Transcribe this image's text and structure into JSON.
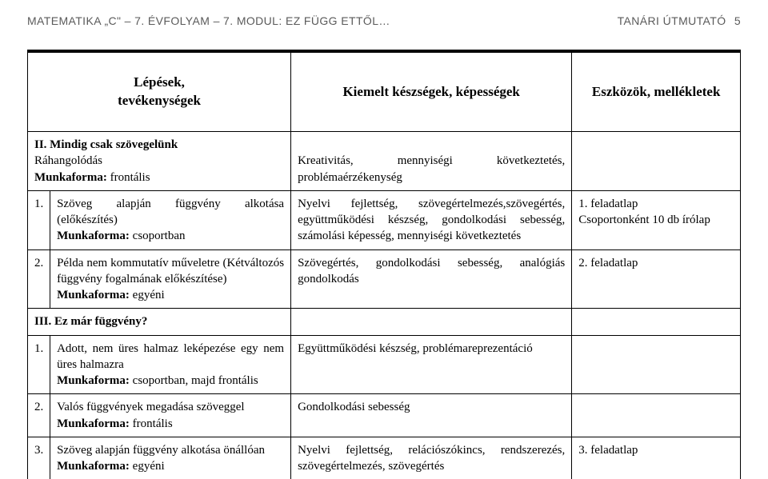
{
  "header": {
    "left": "MATEMATIKA „C\" – 7. ÉVFOLYAM – 7. MODUL: EZ FÜGG ETTŐL…",
    "right_label": "TANÁRI ÚTMUTATÓ",
    "right_num": "5"
  },
  "table": {
    "head": {
      "c1": "Lépések,\ntevékenységek",
      "c2": "Kiemelt készségek, képességek",
      "c3": "Eszközök, mellékletek"
    },
    "sectionII": {
      "title_bold": "II. Mindig csak szövegelünk",
      "row0": {
        "c1a": "Ráhangolódás",
        "c1b_bold": "Munkaforma:",
        "c1b": " frontális",
        "c2": "Kreativitás, mennyiségi következtetés, problémaérzékenység",
        "c3": ""
      },
      "row1": {
        "num": "1.",
        "c1a": "Szöveg alapján függvény alkotása (előkészítés)",
        "c1b_bold": "Munkaforma:",
        "c1b": " csoportban",
        "c2": "Nyelvi fejlettség, szövegértelmezés,szövegértés, együttműködési készség, gondolkodási sebesség, számolási képesség, mennyiségi következtetés",
        "c3": "1. feladatlap\nCsoportonként 10 db írólap"
      },
      "row2": {
        "num": "2.",
        "c1a": "Példa nem kommutatív műveletre (Kétváltozós függvény fogalmának előkészítése)",
        "c1b_bold": "Munkaforma:",
        "c1b": " egyéni",
        "c2": "Szövegértés, gondolkodási sebesség, analógiás gondolkodás",
        "c3": "2. feladatlap"
      }
    },
    "sectionIII": {
      "title_bold": "III. Ez már függvény?",
      "row1": {
        "num": "1.",
        "c1a": "Adott, nem üres halmaz leképezése egy nem üres halmazra",
        "c1b_bold": "Munkaforma:",
        "c1b": " csoportban, majd frontális",
        "c2": "Együttműködési készség, problémareprezentáció",
        "c3": ""
      },
      "row2": {
        "num": "2.",
        "c1a": "Valós függvények megadása szöveggel",
        "c1b_bold": "Munkaforma:",
        "c1b": " frontális",
        "c2": "Gondolkodási sebesség",
        "c3": ""
      },
      "row3": {
        "num": "3.",
        "c1a": "Szöveg alapján függvény alkotása önállóan",
        "c1b_bold": "Munkaforma:",
        "c1b": " egyéni",
        "c2": "Nyelvi fejlettség, relációszókincs, rendszerezés, szövegértelmezés, szövegértés",
        "c3": "3. feladatlap"
      }
    }
  }
}
